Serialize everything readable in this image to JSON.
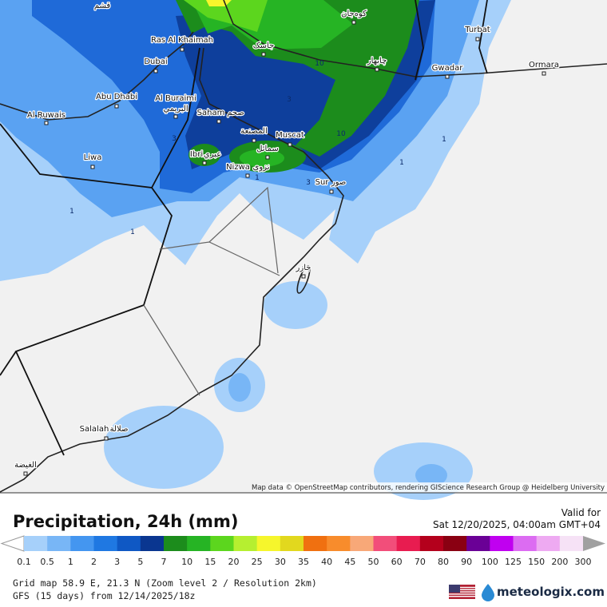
{
  "map": {
    "places": [
      {
        "label": "Ras Al Khaimah"
      },
      {
        "label": "Dubai"
      },
      {
        "label": "Abu Dhabi"
      },
      {
        "label": "Al Buraimi"
      },
      {
        "label": "البريمي"
      },
      {
        "label": "Al Ruwais"
      },
      {
        "label": "Liwa"
      },
      {
        "label": "Saham"
      },
      {
        "label": "صحم"
      },
      {
        "label": "المصنعة"
      },
      {
        "label": "Muscat"
      },
      {
        "label": "Ibri"
      },
      {
        "label": "عبري"
      },
      {
        "label": "سمائل"
      },
      {
        "label": "Nizwa"
      },
      {
        "label": "نزوى"
      },
      {
        "label": "Sur"
      },
      {
        "label": "صور"
      },
      {
        "label": "Turbat"
      },
      {
        "label": "Gwadar"
      },
      {
        "label": "Ormara"
      },
      {
        "label": "Salalah"
      },
      {
        "label": "صلالة"
      },
      {
        "label": "جاسک"
      },
      {
        "label": "چابهار"
      },
      {
        "label": "قشم"
      },
      {
        "label": "کوه‌جان"
      },
      {
        "label": "جازر"
      },
      {
        "label": "الغيضة"
      }
    ],
    "contour_labels": [
      "3",
      "10",
      "10",
      "3",
      "3",
      "1",
      "1",
      "1",
      "1",
      "1"
    ],
    "attribution": "Map data © OpenStreetMap contributors, rendering GIScience Research Group @ Heidelberg University"
  },
  "legend": {
    "title": "Precipitation, 24h (mm)",
    "valid_label": "Valid for",
    "valid_time": "Sat 12/20/2025, 04:00am GMT+04",
    "ticks": [
      0.1,
      0.5,
      1,
      2,
      3,
      5,
      7,
      10,
      15,
      20,
      25,
      30,
      35,
      40,
      45,
      50,
      60,
      70,
      80,
      90,
      100,
      125,
      150,
      200,
      300
    ],
    "colors": [
      "#a6d0fa",
      "#78b6f6",
      "#4496f0",
      "#1f78e2",
      "#0f58c4",
      "#0a3690",
      "#1c8c1c",
      "#26b424",
      "#5cd61e",
      "#b6ef30",
      "#f6f62c",
      "#e2d81e",
      "#f07010",
      "#f88c2c",
      "#f8a878",
      "#f24e7a",
      "#e81c50",
      "#b4001c",
      "#8a0012",
      "#6a0096",
      "#c000f0",
      "#dc6cf2",
      "#eeaaf2",
      "#f6e2f6"
    ],
    "under_color": "#ffffff",
    "over_color": "#a0a0a0"
  },
  "footer": {
    "grid": "Grid map 58.9 E, 21.3 N (Zoom level 2 / Resolution 2km)",
    "model": "GFS (15 days) from  12/14/2025/18z",
    "brand": "meteologix.com"
  }
}
